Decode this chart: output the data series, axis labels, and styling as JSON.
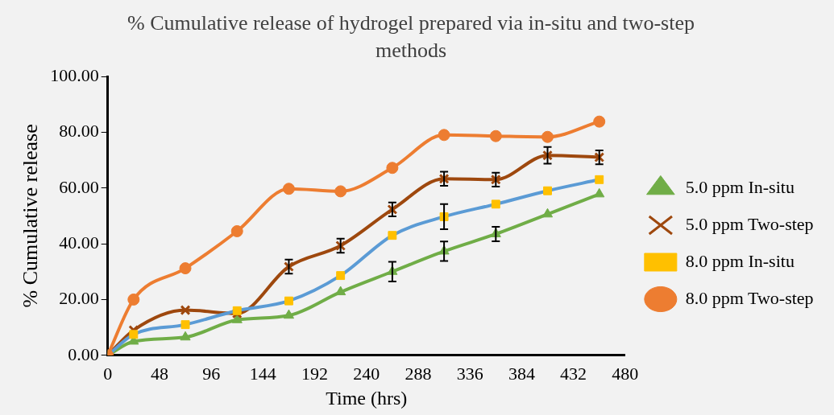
{
  "chart_data": {
    "type": "line",
    "title": "% Cumulative release of hydrogel prepared via in-situ and two-step methods",
    "xlabel": "Time (hrs)",
    "ylabel": "% Cumulative release",
    "x": [
      0,
      24,
      72,
      120,
      168,
      216,
      264,
      312,
      360,
      408,
      456
    ],
    "xlim": [
      0,
      480
    ],
    "xticks": [
      0,
      48,
      96,
      144,
      192,
      240,
      288,
      336,
      384,
      432,
      480
    ],
    "ylim": [
      0,
      100
    ],
    "yticks": [
      {
        "value": 0,
        "label": "0.00"
      },
      {
        "value": 20,
        "label": "20.00"
      },
      {
        "value": 40,
        "label": "40.00"
      },
      {
        "value": 60,
        "label": "60.00"
      },
      {
        "value": 80,
        "label": "80.00"
      },
      {
        "value": 100,
        "label": "100.00"
      }
    ],
    "grid": false,
    "legend": "right",
    "series": [
      {
        "name": "5.0 ppm In-situ",
        "color": "#70ad47",
        "marker": "triangle",
        "values": [
          0,
          5,
          6.5,
          12.7,
          14.3,
          22.7,
          30,
          37.3,
          43.5,
          50.6,
          57.8
        ],
        "errors": [
          null,
          null,
          null,
          null,
          null,
          null,
          3.5,
          3.5,
          2.6,
          null,
          null
        ]
      },
      {
        "name": "5.0 ppm Two-step",
        "color": "#9e480e",
        "marker": "cross",
        "values": [
          0,
          9,
          16.2,
          15,
          31.8,
          39.3,
          52.3,
          63.3,
          63,
          71.7,
          71
        ],
        "errors": [
          null,
          null,
          null,
          null,
          2.5,
          2.5,
          2.5,
          2.5,
          2.5,
          3,
          2.5
        ]
      },
      {
        "name": "8.0 ppm In-situ",
        "color": "#5b9bd5",
        "colors": [
          "#ffc000",
          "#ffc000",
          "#ffc000",
          "#ffc000",
          "#ffc000",
          "#ffc000",
          "#ffc000",
          "#ffc000",
          "#ffc000",
          "#ffc000",
          "#ffc000"
        ],
        "marker": "square",
        "values": [
          0,
          7.5,
          11,
          16,
          19.5,
          28.6,
          43,
          49.7,
          54.2,
          59,
          63
        ],
        "errors": [
          null,
          null,
          null,
          null,
          null,
          null,
          null,
          4.5,
          null,
          null,
          null
        ]
      },
      {
        "name": "8.0 ppm Two-step",
        "color": "#ed7d31",
        "marker": "circle",
        "values": [
          0,
          20,
          31.2,
          44.5,
          59.7,
          58.8,
          67.2,
          79,
          78.6,
          78.3,
          83.8
        ]
      }
    ]
  }
}
